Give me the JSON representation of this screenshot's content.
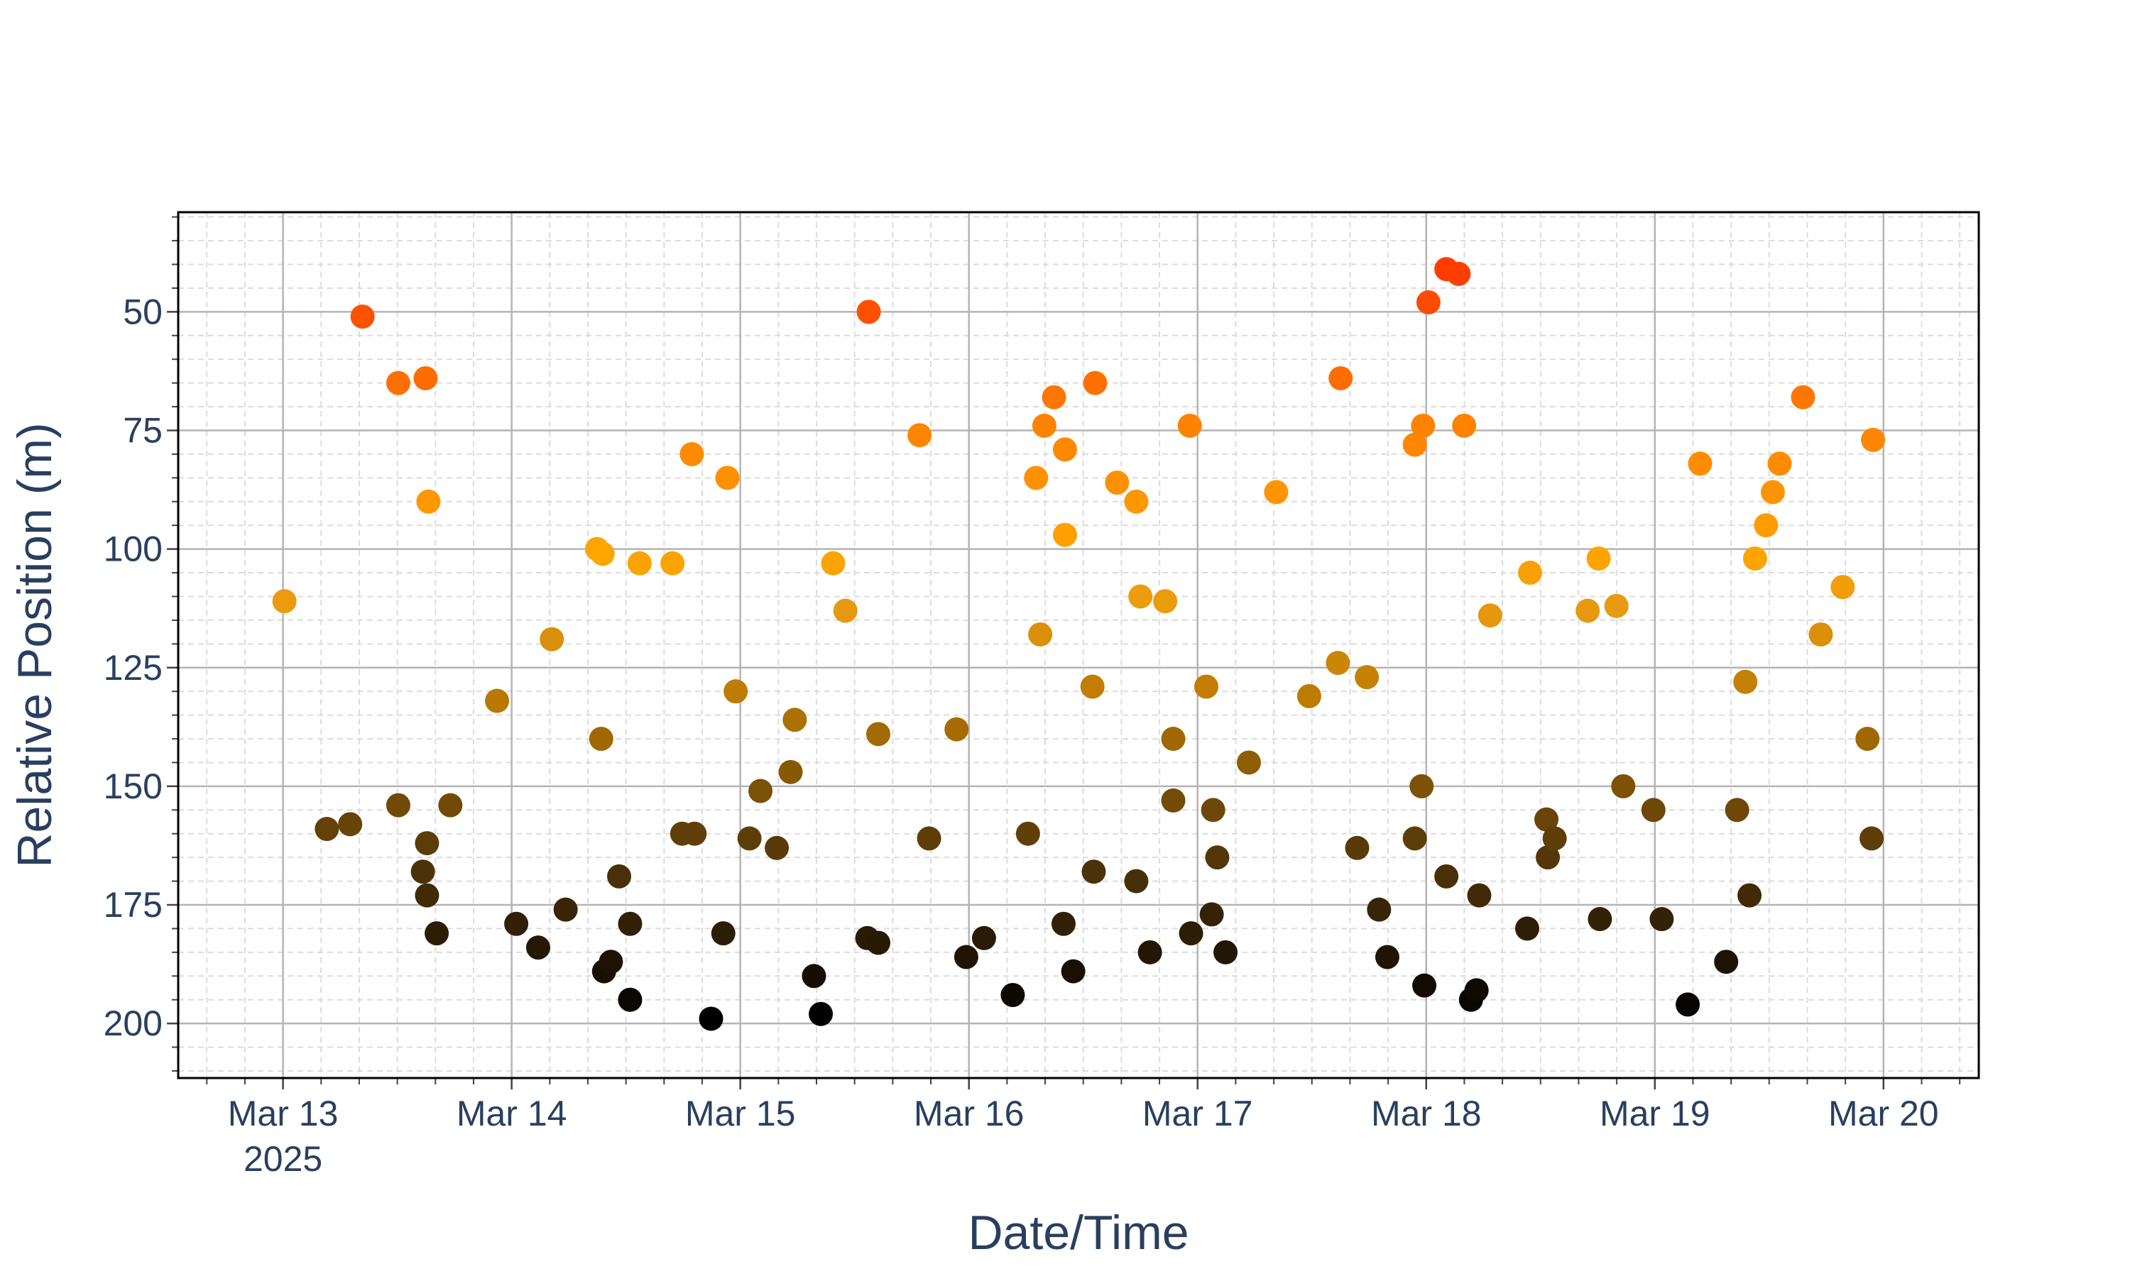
{
  "chart_data": {
    "type": "scatter",
    "x_label": "Date/Time",
    "y_label": "Relative Position (m)",
    "xlim": [
      "2025-03-12 13:00",
      "2025-03-20 10:00"
    ],
    "xticks": [
      {
        "value": "2025-03-13",
        "label": "Mar 13\n2025"
      },
      {
        "value": "2025-03-14",
        "label": "Mar 14"
      },
      {
        "value": "2025-03-15",
        "label": "Mar 15"
      },
      {
        "value": "2025-03-16",
        "label": "Mar 16"
      },
      {
        "value": "2025-03-17",
        "label": "Mar 17"
      },
      {
        "value": "2025-03-18",
        "label": "Mar 18"
      },
      {
        "value": "2025-03-19",
        "label": "Mar 19"
      },
      {
        "value": "2025-03-20",
        "label": "Mar 20"
      }
    ],
    "ylim": [
      211.5,
      29
    ],
    "yticks": [
      50,
      75,
      100,
      125,
      150,
      175,
      200
    ],
    "grid": true,
    "minor_grid": true,
    "colorscale": [
      [
        0,
        "#ff3c00"
      ],
      [
        0.2,
        "#ff8000"
      ],
      [
        0.38,
        "#ffa500"
      ],
      [
        0.45,
        "#e89a10"
      ],
      [
        0.58,
        "#b87800"
      ],
      [
        0.72,
        "#6e4808"
      ],
      [
        0.85,
        "#3a2608"
      ],
      [
        1,
        "#000000"
      ]
    ],
    "x": [
      "2025-03-13 00:09",
      "2025-03-13 04:36",
      "2025-03-13 07:03",
      "2025-03-13 08:21",
      "2025-03-13 12:06",
      "2025-03-13 12:06",
      "2025-03-13 14:58",
      "2025-03-13 15:16",
      "2025-03-13 14:41",
      "2025-03-13 15:07",
      "2025-03-13 15:07",
      "2025-03-13 16:08",
      "2025-03-13 17:34",
      "2025-03-13 22:28",
      "2025-03-14 00:29",
      "2025-03-14 02:47",
      "2025-03-14 04:13",
      "2025-03-14 05:40",
      "2025-03-14 08:58",
      "2025-03-14 09:33",
      "2025-03-14 09:24",
      "2025-03-14 09:42",
      "2025-03-14 10:25",
      "2025-03-14 11:17",
      "2025-03-14 12:26",
      "2025-03-14 12:26",
      "2025-03-14 13:26",
      "2025-03-14 16:53",
      "2025-03-14 17:54",
      "2025-03-14 19:12",
      "2025-03-14 18:55",
      "2025-03-14 20:56",
      "2025-03-14 22:13",
      "2025-03-14 22:39",
      "2025-03-14 23:31",
      "2025-03-15 00:58",
      "2025-03-15 02:07",
      "2025-03-15 03:50",
      "2025-03-15 05:17",
      "2025-03-15 05:43",
      "2025-03-15 07:44",
      "2025-03-15 08:27",
      "2025-03-15 09:45",
      "2025-03-15 11:02",
      "2025-03-15 13:29",
      "2025-03-15 13:20",
      "2025-03-15 14:29",
      "2025-03-15 14:29",
      "2025-03-15 18:49",
      "2025-03-15 19:49",
      "2025-03-15 22:42",
      "2025-03-15 23:43",
      "2025-03-16 01:35",
      "2025-03-16 04:36",
      "2025-03-16 06:12",
      "2025-03-16 07:03",
      "2025-03-16 07:29",
      "2025-03-16 07:55",
      "2025-03-16 08:56",
      "2025-03-16 09:56",
      "2025-03-16 10:05",
      "2025-03-16 10:05",
      "2025-03-16 10:57",
      "2025-03-16 12:58",
      "2025-03-16 13:06",
      "2025-03-16 13:15",
      "2025-03-16 15:33",
      "2025-03-16 17:34",
      "2025-03-16 17:34",
      "2025-03-16 18:00",
      "2025-03-16 19:00",
      "2025-03-16 20:36",
      "2025-03-16 21:27",
      "2025-03-16 21:27",
      "2025-03-16 23:11",
      "2025-03-16 23:19",
      "2025-03-17 00:55",
      "2025-03-17 01:29",
      "2025-03-17 01:38",
      "2025-03-17 02:04",
      "2025-03-17 02:56",
      "2025-03-17 05:23",
      "2025-03-17 08:15",
      "2025-03-17 11:43",
      "2025-03-17 14:44",
      "2025-03-17 15:01",
      "2025-03-17 16:45",
      "2025-03-17 17:46",
      "2025-03-17 19:03",
      "2025-03-17 19:55",
      "2025-03-17 22:48",
      "2025-03-17 22:48",
      "2025-03-17 23:31",
      "2025-03-17 23:40",
      "2025-03-17 23:48",
      "2025-03-18 00:14",
      "2025-03-18 02:07",
      "2025-03-18 03:24",
      "2025-03-18 02:07",
      "2025-03-18 03:59",
      "2025-03-18 04:42",
      "2025-03-18 05:17",
      "2025-03-18 05:34",
      "2025-03-18 06:43",
      "2025-03-18 10:36",
      "2025-03-18 10:54",
      "2025-03-18 12:37",
      "2025-03-18 12:46",
      "2025-03-18 13:29",
      "2025-03-18 16:57",
      "2025-03-18 18:06",
      "2025-03-18 18:14",
      "2025-03-18 19:58",
      "2025-03-18 20:41",
      "2025-03-18 23:51",
      "2025-03-19 00:43",
      "2025-03-19 03:27",
      "2025-03-19 04:45",
      "2025-03-19 07:29",
      "2025-03-19 08:38",
      "2025-03-19 09:30",
      "2025-03-19 09:56",
      "2025-03-19 10:31",
      "2025-03-19 11:40",
      "2025-03-19 12:23",
      "2025-03-19 13:06",
      "2025-03-19 15:33",
      "2025-03-19 17:25",
      "2025-03-19 19:43",
      "2025-03-19 22:19",
      "2025-03-19 22:45",
      "2025-03-19 22:54"
    ],
    "values": [
      111,
      159,
      158,
      51,
      65,
      154,
      64,
      90,
      168,
      162,
      173,
      181,
      154,
      132,
      179,
      184,
      119,
      176,
      100,
      101,
      140,
      189,
      187,
      169,
      195,
      179,
      103,
      103,
      160,
      160,
      80,
      199,
      181,
      85,
      130,
      161,
      151,
      163,
      147,
      136,
      190,
      198,
      103,
      113,
      50,
      182,
      183,
      139,
      76,
      161,
      138,
      186,
      182,
      194,
      160,
      85,
      118,
      74,
      68,
      179,
      79,
      97,
      189,
      129,
      168,
      65,
      86,
      170,
      90,
      110,
      185,
      111,
      140,
      153,
      74,
      181,
      129,
      177,
      155,
      165,
      185,
      145,
      88,
      131,
      124,
      64,
      163,
      127,
      176,
      186,
      78,
      161,
      150,
      74,
      192,
      48,
      41,
      42,
      169,
      74,
      195,
      193,
      173,
      114,
      180,
      105,
      157,
      165,
      161,
      113,
      102,
      178,
      112,
      150,
      155,
      178,
      196,
      82,
      187,
      155,
      128,
      173,
      102,
      95,
      88,
      82,
      68,
      118,
      108,
      140,
      161,
      77
    ]
  }
}
